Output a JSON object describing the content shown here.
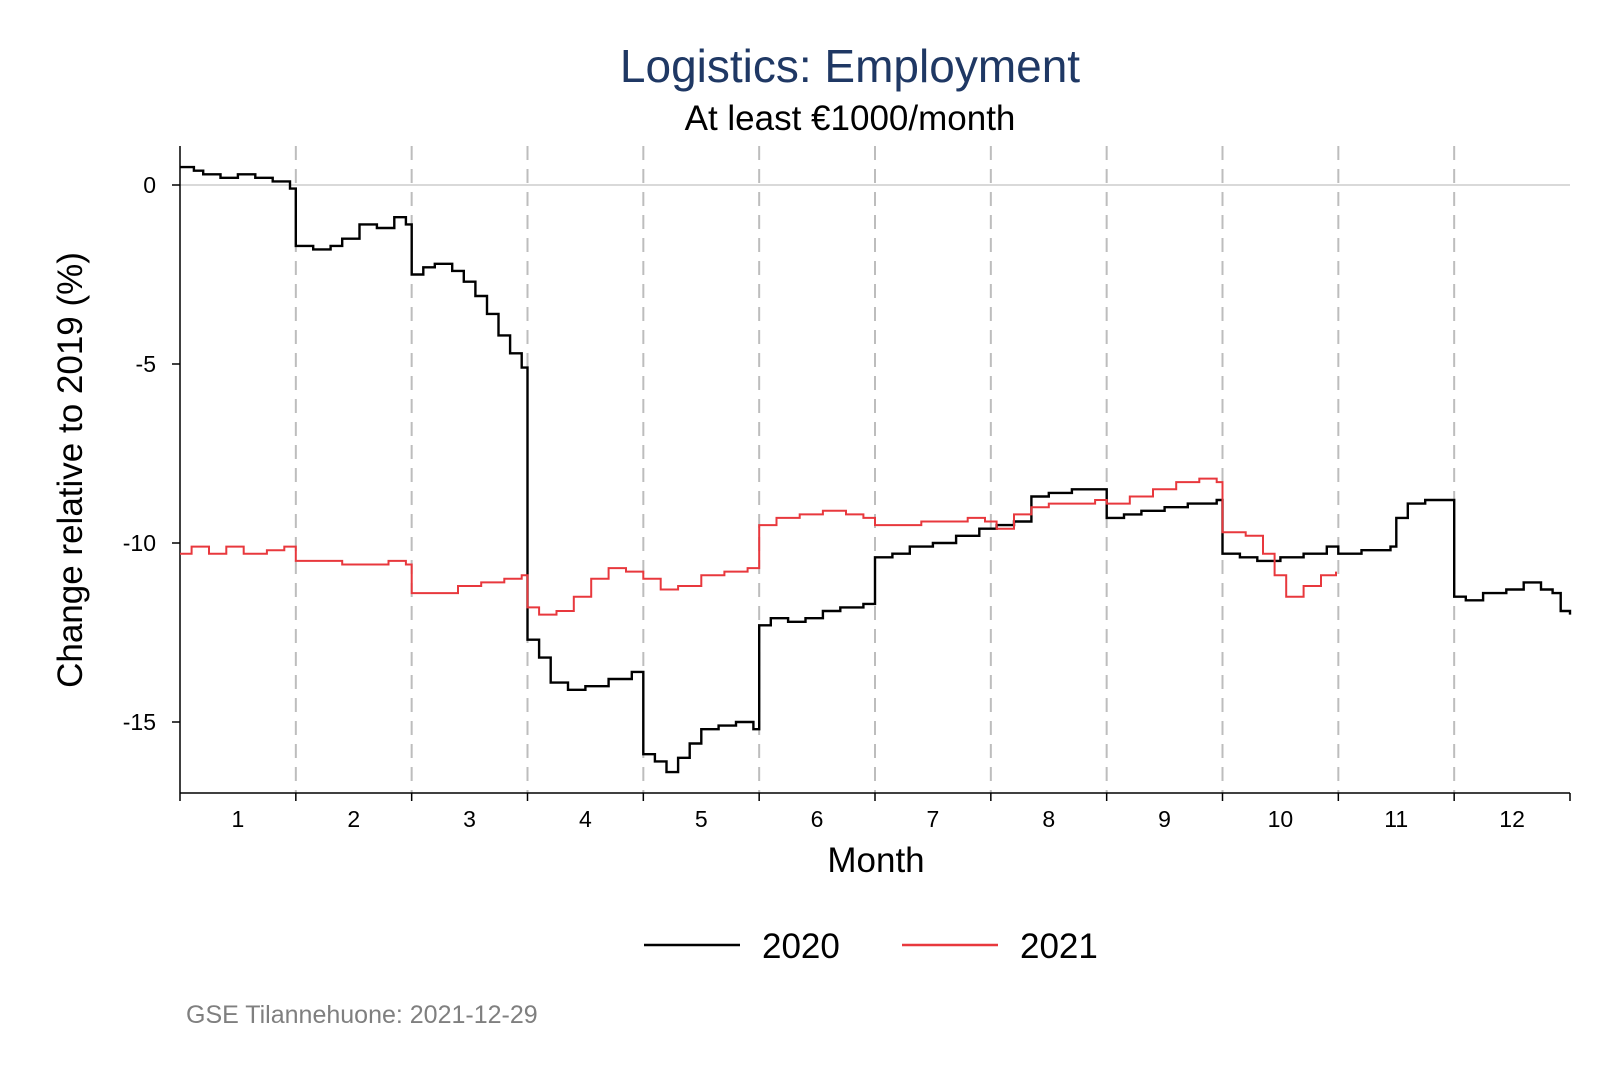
{
  "chart_data": {
    "type": "line",
    "title": "Logistics: Employment",
    "subtitle": "At least €1000/month",
    "xlabel": "Month",
    "ylabel": "Change relative to 2019 (%)",
    "xlim": [
      0.5,
      12.5
    ],
    "ylim": [
      -17,
      1.1
    ],
    "x_ticks": [
      1,
      2,
      3,
      4,
      5,
      6,
      7,
      8,
      9,
      10,
      11,
      12
    ],
    "y_ticks": [
      0,
      -5,
      -10,
      -15
    ],
    "month_boundaries": [
      1.5,
      2.5,
      3.5,
      4.5,
      5.5,
      6.5,
      7.5,
      8.5,
      9.5,
      10.5,
      11.5
    ],
    "zero_line": 0,
    "legend_position": "bottom",
    "series": [
      {
        "name": "2020",
        "color": "#000000",
        "points": [
          [
            0.5,
            0.5
          ],
          [
            0.62,
            0.4
          ],
          [
            0.7,
            0.3
          ],
          [
            0.85,
            0.2
          ],
          [
            1.0,
            0.3
          ],
          [
            1.15,
            0.2
          ],
          [
            1.3,
            0.1
          ],
          [
            1.45,
            -0.1
          ],
          [
            1.5,
            -1.7
          ],
          [
            1.65,
            -1.8
          ],
          [
            1.8,
            -1.7
          ],
          [
            1.9,
            -1.5
          ],
          [
            2.05,
            -1.1
          ],
          [
            2.2,
            -1.2
          ],
          [
            2.35,
            -0.9
          ],
          [
            2.45,
            -1.1
          ],
          [
            2.5,
            -2.5
          ],
          [
            2.6,
            -2.3
          ],
          [
            2.7,
            -2.2
          ],
          [
            2.85,
            -2.4
          ],
          [
            2.95,
            -2.7
          ],
          [
            3.05,
            -3.1
          ],
          [
            3.15,
            -3.6
          ],
          [
            3.25,
            -4.2
          ],
          [
            3.35,
            -4.7
          ],
          [
            3.45,
            -5.1
          ],
          [
            3.5,
            -12.7
          ],
          [
            3.6,
            -13.2
          ],
          [
            3.7,
            -13.9
          ],
          [
            3.85,
            -14.1
          ],
          [
            4.0,
            -14.0
          ],
          [
            4.2,
            -13.8
          ],
          [
            4.4,
            -13.6
          ],
          [
            4.5,
            -15.9
          ],
          [
            4.6,
            -16.1
          ],
          [
            4.7,
            -16.4
          ],
          [
            4.8,
            -16.0
          ],
          [
            4.9,
            -15.6
          ],
          [
            5.0,
            -15.2
          ],
          [
            5.15,
            -15.1
          ],
          [
            5.3,
            -15.0
          ],
          [
            5.45,
            -15.2
          ],
          [
            5.5,
            -12.3
          ],
          [
            5.6,
            -12.1
          ],
          [
            5.75,
            -12.2
          ],
          [
            5.9,
            -12.1
          ],
          [
            6.05,
            -11.9
          ],
          [
            6.2,
            -11.8
          ],
          [
            6.4,
            -11.7
          ],
          [
            6.5,
            -10.4
          ],
          [
            6.65,
            -10.3
          ],
          [
            6.8,
            -10.1
          ],
          [
            7.0,
            -10.0
          ],
          [
            7.2,
            -9.8
          ],
          [
            7.4,
            -9.6
          ],
          [
            7.55,
            -9.5
          ],
          [
            7.7,
            -9.4
          ],
          [
            7.85,
            -8.7
          ],
          [
            8.0,
            -8.6
          ],
          [
            8.2,
            -8.5
          ],
          [
            8.4,
            -8.5
          ],
          [
            8.5,
            -9.3
          ],
          [
            8.65,
            -9.2
          ],
          [
            8.8,
            -9.1
          ],
          [
            9.0,
            -9.0
          ],
          [
            9.2,
            -8.9
          ],
          [
            9.45,
            -8.8
          ],
          [
            9.5,
            -10.3
          ],
          [
            9.65,
            -10.4
          ],
          [
            9.8,
            -10.5
          ],
          [
            10.0,
            -10.4
          ],
          [
            10.2,
            -10.3
          ],
          [
            10.4,
            -10.1
          ],
          [
            10.5,
            -10.3
          ],
          [
            10.7,
            -10.2
          ],
          [
            10.95,
            -10.1
          ],
          [
            11.0,
            -9.3
          ],
          [
            11.1,
            -8.9
          ],
          [
            11.25,
            -8.8
          ],
          [
            11.45,
            -8.8
          ],
          [
            11.5,
            -11.5
          ],
          [
            11.6,
            -11.6
          ],
          [
            11.75,
            -11.4
          ],
          [
            11.95,
            -11.3
          ],
          [
            12.1,
            -11.1
          ],
          [
            12.25,
            -11.3
          ],
          [
            12.35,
            -11.4
          ],
          [
            12.42,
            -11.9
          ],
          [
            12.5,
            -12.0
          ]
        ]
      },
      {
        "name": "2021",
        "color": "#e8383d",
        "points": [
          [
            0.5,
            -10.3
          ],
          [
            0.6,
            -10.1
          ],
          [
            0.75,
            -10.3
          ],
          [
            0.9,
            -10.1
          ],
          [
            1.05,
            -10.3
          ],
          [
            1.25,
            -10.2
          ],
          [
            1.4,
            -10.1
          ],
          [
            1.5,
            -10.5
          ],
          [
            1.7,
            -10.5
          ],
          [
            1.9,
            -10.6
          ],
          [
            2.1,
            -10.6
          ],
          [
            2.3,
            -10.5
          ],
          [
            2.45,
            -10.6
          ],
          [
            2.5,
            -11.4
          ],
          [
            2.7,
            -11.4
          ],
          [
            2.9,
            -11.2
          ],
          [
            3.1,
            -11.1
          ],
          [
            3.3,
            -11.0
          ],
          [
            3.45,
            -10.9
          ],
          [
            3.5,
            -11.8
          ],
          [
            3.6,
            -12.0
          ],
          [
            3.75,
            -11.9
          ],
          [
            3.9,
            -11.5
          ],
          [
            4.05,
            -11.0
          ],
          [
            4.2,
            -10.7
          ],
          [
            4.35,
            -10.8
          ],
          [
            4.5,
            -11.0
          ],
          [
            4.65,
            -11.3
          ],
          [
            4.8,
            -11.2
          ],
          [
            5.0,
            -10.9
          ],
          [
            5.2,
            -10.8
          ],
          [
            5.4,
            -10.7
          ],
          [
            5.5,
            -9.5
          ],
          [
            5.65,
            -9.3
          ],
          [
            5.85,
            -9.2
          ],
          [
            6.05,
            -9.1
          ],
          [
            6.25,
            -9.2
          ],
          [
            6.4,
            -9.3
          ],
          [
            6.5,
            -9.5
          ],
          [
            6.7,
            -9.5
          ],
          [
            6.9,
            -9.4
          ],
          [
            7.1,
            -9.4
          ],
          [
            7.3,
            -9.3
          ],
          [
            7.45,
            -9.4
          ],
          [
            7.55,
            -9.6
          ],
          [
            7.7,
            -9.2
          ],
          [
            7.85,
            -9.0
          ],
          [
            8.0,
            -8.9
          ],
          [
            8.2,
            -8.9
          ],
          [
            8.4,
            -8.8
          ],
          [
            8.5,
            -8.9
          ],
          [
            8.7,
            -8.7
          ],
          [
            8.9,
            -8.5
          ],
          [
            9.1,
            -8.3
          ],
          [
            9.3,
            -8.2
          ],
          [
            9.45,
            -8.3
          ],
          [
            9.5,
            -9.7
          ],
          [
            9.7,
            -9.8
          ],
          [
            9.85,
            -10.3
          ],
          [
            9.95,
            -10.9
          ],
          [
            10.05,
            -11.5
          ],
          [
            10.2,
            -11.2
          ],
          [
            10.35,
            -10.9
          ],
          [
            10.48,
            -10.8
          ]
        ]
      }
    ],
    "source_note": "GSE Tilannehuone: 2021-12-29"
  }
}
